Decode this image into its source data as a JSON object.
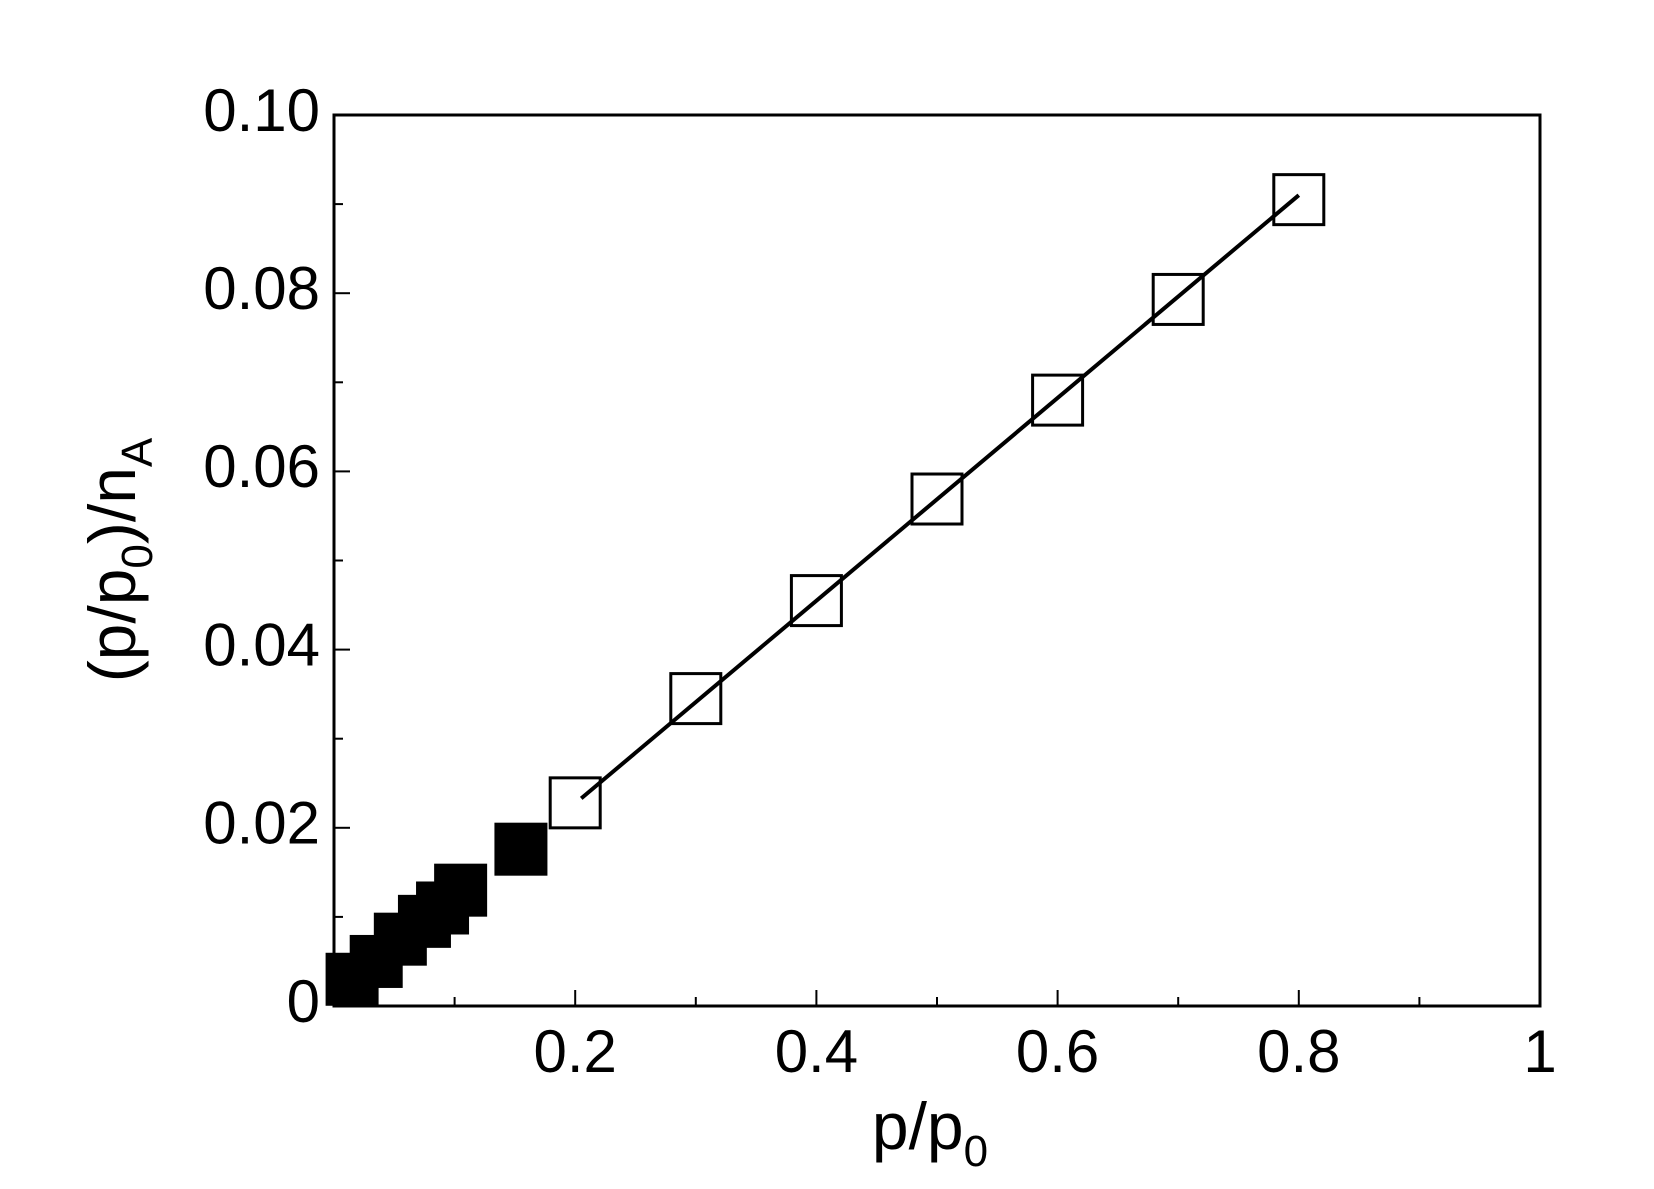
{
  "chart_data": {
    "type": "scatter",
    "x_label": [
      "p/p",
      "0"
    ],
    "y_label": [
      "(p/p",
      "0",
      ")/n",
      "A"
    ],
    "xlim": [
      0,
      1
    ],
    "ylim": [
      0,
      0.1
    ],
    "xticks": [
      0.2,
      0.4,
      0.6,
      0.8,
      1
    ],
    "xminor": [
      0.1,
      0.3,
      0.5,
      0.7,
      0.9
    ],
    "yticks": [
      0,
      0.02,
      0.04,
      0.06,
      0.08,
      {
        "value": 0.1,
        "label": "0.10"
      }
    ],
    "yminor": [
      0.01,
      0.03,
      0.05,
      0.07,
      0.09
    ],
    "series": [
      {
        "color": "#000000",
        "fill": "#000000",
        "x": [
          0.015,
          0.035,
          0.055,
          0.075,
          0.09,
          0.105,
          0.155
        ],
        "values": [
          0.003,
          0.005,
          0.0075,
          0.0095,
          0.011,
          0.013,
          0.0176
        ]
      },
      {
        "color": "#000000",
        "fill": "#ffffff",
        "x": [
          0.2,
          0.3,
          0.4,
          0.5,
          0.6,
          0.7,
          0.8
        ],
        "values": [
          0.0228,
          0.0345,
          0.0455,
          0.0569,
          0.068,
          0.0793,
          0.0905
        ]
      }
    ],
    "fit": {
      "color": "#000000",
      "x": [
        0.205,
        0.8
      ],
      "values": [
        0.0233,
        0.091
      ]
    }
  }
}
